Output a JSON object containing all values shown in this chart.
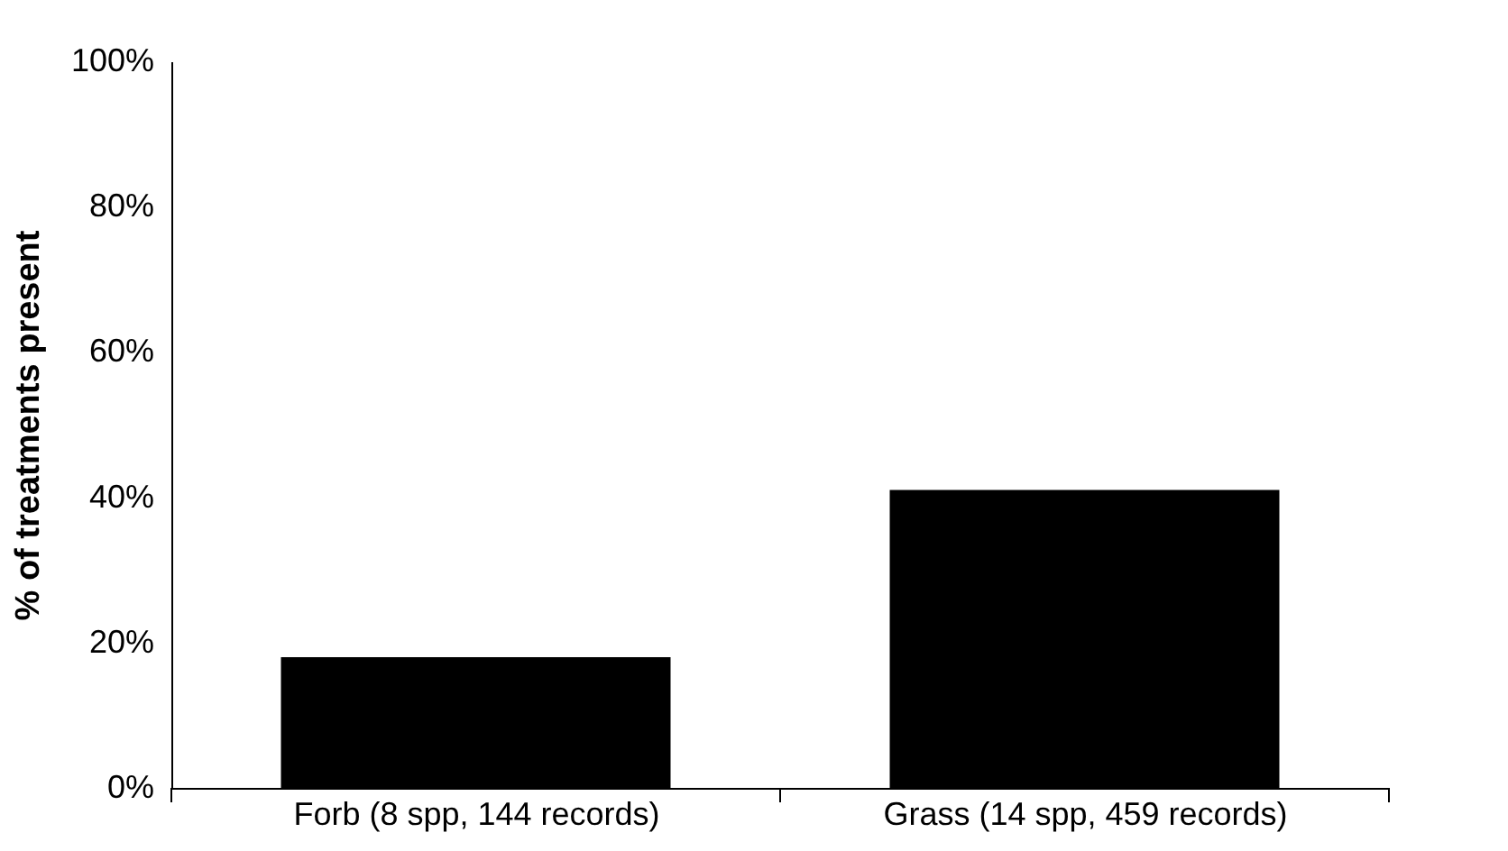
{
  "chart_data": {
    "type": "bar",
    "ylabel": "% of treatments present",
    "categories": [
      "Forb (8 spp, 144 records)",
      "Grass (14 spp, 459 records)"
    ],
    "values": [
      18,
      41
    ],
    "color": "#000000",
    "ylim": [
      0,
      100
    ],
    "yticks": [
      {
        "value": 0,
        "label": "0%"
      },
      {
        "value": 20,
        "label": "20%"
      },
      {
        "value": 40,
        "label": "40%"
      },
      {
        "value": 60,
        "label": "60%"
      },
      {
        "value": 80,
        "label": "80%"
      },
      {
        "value": 100,
        "label": "100%"
      }
    ],
    "grid": false
  }
}
